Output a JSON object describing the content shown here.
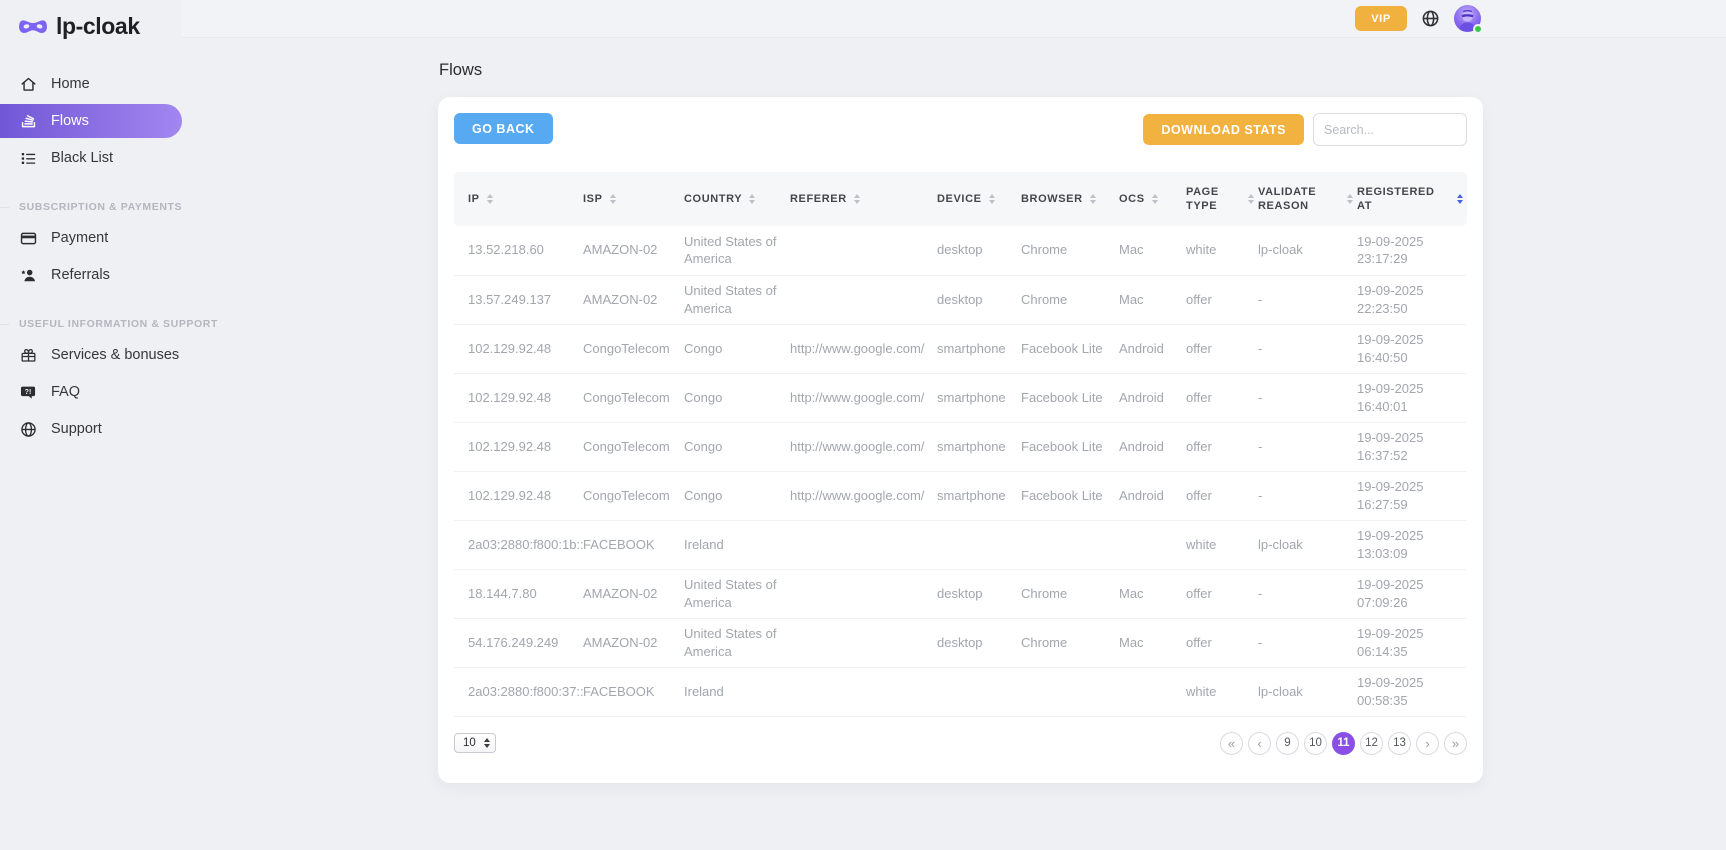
{
  "brand": {
    "name": "lp-cloak",
    "logo_icon": "mask-icon",
    "logo_color": "#7e64f2"
  },
  "topbar": {
    "vip_label": "VIP",
    "vip_color": "#f1b13f",
    "language_icon": "globe-icon",
    "avatar_icon": "user-avatar",
    "avatar_status": "online"
  },
  "sidebar": {
    "sections": [
      {
        "title": "",
        "items": [
          {
            "label": "Home",
            "icon": "home-icon",
            "active": false
          },
          {
            "label": "Flows",
            "icon": "flows-icon",
            "active": true
          },
          {
            "label": "Black List",
            "icon": "blacklist-icon",
            "active": false
          }
        ]
      },
      {
        "title": "SUBSCRIPTION & PAYMENTS",
        "items": [
          {
            "label": "Payment",
            "icon": "payment-icon",
            "active": false
          },
          {
            "label": "Referrals",
            "icon": "referrals-icon",
            "active": false
          }
        ]
      },
      {
        "title": "USEFUL INFORMATION & SUPPORT",
        "items": [
          {
            "label": "Services & bonuses",
            "icon": "gift-icon",
            "active": false
          },
          {
            "label": "FAQ",
            "icon": "faq-icon",
            "active": false
          },
          {
            "label": "Support",
            "icon": "support-icon",
            "active": false
          }
        ]
      }
    ]
  },
  "page": {
    "title": "Flows"
  },
  "toolbar": {
    "go_back_label": "GO BACK",
    "download_stats_label": "DOWNLOAD STATS",
    "search_placeholder": "Search..."
  },
  "table": {
    "columns": [
      {
        "key": "ip",
        "label": "IP",
        "sortable": true,
        "sort_active": false
      },
      {
        "key": "isp",
        "label": "ISP",
        "sortable": true,
        "sort_active": false
      },
      {
        "key": "country",
        "label": "COUNTRY",
        "sortable": true,
        "sort_active": false
      },
      {
        "key": "referer",
        "label": "REFERER",
        "sortable": true,
        "sort_active": false
      },
      {
        "key": "device",
        "label": "DEVICE",
        "sortable": true,
        "sort_active": false
      },
      {
        "key": "browser",
        "label": "BROWSER",
        "sortable": true,
        "sort_active": false
      },
      {
        "key": "ocs",
        "label": "OCS",
        "sortable": true,
        "sort_active": false
      },
      {
        "key": "page-type",
        "label": "PAGE TYPE",
        "sortable": true,
        "sort_active": false
      },
      {
        "key": "validate-reason",
        "label": "VALIDATE REASON",
        "sortable": true,
        "sort_active": false
      },
      {
        "key": "registered-at",
        "label": "REGISTERED AT",
        "sortable": true,
        "sort_active": true
      }
    ],
    "rows": [
      {
        "cells": [
          "13.52.218.60",
          "AMAZON-02",
          "United States of America",
          "",
          "desktop",
          "Chrome",
          "Mac",
          "white",
          "lp-cloak",
          "19-09-2025 23:17:29"
        ]
      },
      {
        "cells": [
          "13.57.249.137",
          "AMAZON-02",
          "United States of America",
          "",
          "desktop",
          "Chrome",
          "Mac",
          "offer",
          "-",
          "19-09-2025 22:23:50"
        ]
      },
      {
        "cells": [
          "102.129.92.48",
          "CongoTelecom",
          "Congo",
          "http://www.google.com/",
          "smartphone",
          "Facebook Lite",
          "Android",
          "offer",
          "-",
          "19-09-2025 16:40:50"
        ]
      },
      {
        "cells": [
          "102.129.92.48",
          "CongoTelecom",
          "Congo",
          "http://www.google.com/",
          "smartphone",
          "Facebook Lite",
          "Android",
          "offer",
          "-",
          "19-09-2025 16:40:01"
        ]
      },
      {
        "cells": [
          "102.129.92.48",
          "CongoTelecom",
          "Congo",
          "http://www.google.com/",
          "smartphone",
          "Facebook Lite",
          "Android",
          "offer",
          "-",
          "19-09-2025 16:37:52"
        ]
      },
      {
        "cells": [
          "102.129.92.48",
          "CongoTelecom",
          "Congo",
          "http://www.google.com/",
          "smartphone",
          "Facebook Lite",
          "Android",
          "offer",
          "-",
          "19-09-2025 16:27:59"
        ]
      },
      {
        "cells": [
          "2a03:2880:f800:1b::",
          "FACEBOOK",
          "Ireland",
          "",
          "",
          "",
          "",
          "white",
          "lp-cloak",
          "19-09-2025 13:03:09"
        ]
      },
      {
        "cells": [
          "18.144.7.80",
          "AMAZON-02",
          "United States of America",
          "",
          "desktop",
          "Chrome",
          "Mac",
          "offer",
          "-",
          "19-09-2025 07:09:26"
        ]
      },
      {
        "cells": [
          "54.176.249.249",
          "AMAZON-02",
          "United States of America",
          "",
          "desktop",
          "Chrome",
          "Mac",
          "offer",
          "-",
          "19-09-2025 06:14:35"
        ]
      },
      {
        "cells": [
          "2a03:2880:f800:37::",
          "FACEBOOK",
          "Ireland",
          "",
          "",
          "",
          "",
          "white",
          "lp-cloak",
          "19-09-2025 00:58:35"
        ]
      }
    ]
  },
  "pagination": {
    "per_page": "10",
    "first_label": "«",
    "prev_label": "‹",
    "pages": [
      "9",
      "10",
      "11",
      "12",
      "13"
    ],
    "active_page": "11",
    "next_label": "›",
    "last_label": "»",
    "active_color": "#8b4fe8"
  },
  "colors": {
    "background": "#eff0f4",
    "sidebar_active_gradient_start": "#7157d5",
    "sidebar_active_gradient_end": "#a286f0",
    "brand_purple": "#7e64f2",
    "go_back_blue": "#57aaf1",
    "download_amber": "#f1b240",
    "pagination_active_purple": "#8b4fe8",
    "sort_active_blue": "#4a5fe8",
    "online_green": "#39cb43"
  }
}
